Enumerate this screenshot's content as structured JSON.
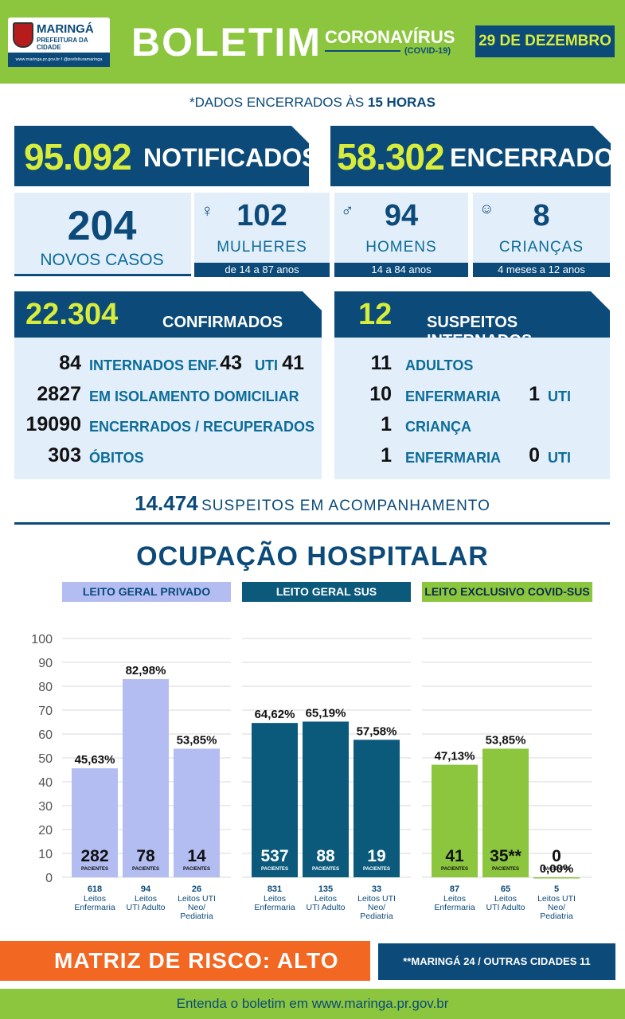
{
  "header": {
    "logo_name": "MARINGÁ",
    "logo_sub": "PREFEITURA DA CIDADE",
    "logo_links": "www.maringa.pr.gov.br  f  @prefeituramaringa",
    "title": "BOLETIM",
    "subtitle": "CORONAVÍRUS",
    "subtitle_tag": "(COVID-19)",
    "date": "29 DE DEZEMBRO"
  },
  "note": {
    "prefix": "*DADOS ENCERRADOS ÀS ",
    "bold": "15 HORAS"
  },
  "notificados": {
    "value": "95.092",
    "label": "NOTIFICADOS"
  },
  "encerrados": {
    "value": "58.302",
    "label": "ENCERRADOS"
  },
  "novos_casos": {
    "value": "204",
    "label": "NOVOS CASOS"
  },
  "demografia": [
    {
      "icon": "woman-icon",
      "value": "102",
      "label": "MULHERES",
      "range": "de 14 a 87 anos"
    },
    {
      "icon": "man-icon",
      "value": "94",
      "label": "HOMENS",
      "range": "14 a 84 anos"
    },
    {
      "icon": "child-icon",
      "value": "8",
      "label": "CRIANÇAS",
      "range": "4 meses a 12 anos"
    }
  ],
  "confirmados": {
    "value": "22.304",
    "label": "CONFIRMADOS",
    "internados": {
      "value": "84",
      "label": "INTERNADOS",
      "enf_label": "ENF.",
      "enf_value": "43",
      "uti_label": "UTI",
      "uti_value": "41"
    },
    "isolamento": {
      "value": "2827",
      "label": "EM ISOLAMENTO DOMICILIAR"
    },
    "recuperados": {
      "value": "19090",
      "label": "ENCERRADOS / RECUPERADOS"
    },
    "obitos": {
      "value": "303",
      "label": "ÓBITOS"
    }
  },
  "suspeitos_internados": {
    "value": "12",
    "label": "SUSPEITOS INTERNADOS",
    "adultos": {
      "value": "11",
      "label": "ADULTOS"
    },
    "adultos_enf": {
      "value": "10",
      "label": "ENFERMARIA",
      "uti_value": "1",
      "uti_label": "UTI"
    },
    "crianca": {
      "value": "1",
      "label": "CRIANÇA"
    },
    "crianca_enf": {
      "value": "1",
      "label": "ENFERMARIA",
      "uti_value": "0",
      "uti_label": "UTI"
    }
  },
  "acompanhamento": {
    "value": "14.474",
    "label": "SUSPEITOS EM ACOMPANHAMENTO"
  },
  "ocupacao_title": "OCUPAÇÃO HOSPITALAR",
  "chart_data": {
    "type": "bar",
    "ylim": [
      0,
      100
    ],
    "yticks": [
      "100",
      "90",
      "80",
      "70",
      "60",
      "50",
      "40",
      "30",
      "20",
      "10",
      "0"
    ],
    "patients_label": "PACIENTES",
    "groups": [
      {
        "name": "LEITO GERAL PRIVADO",
        "color": "#b3bdf2",
        "header_bg": "#b3bdf2",
        "header_fg": "#0b4a79",
        "bars": [
          {
            "pct": 45.63,
            "pct_label": "45,63%",
            "patients": "282",
            "beds": "618",
            "line1": "Leitos",
            "line2": "Enfermaria",
            "line3": ""
          },
          {
            "pct": 82.98,
            "pct_label": "82,98%",
            "patients": "78",
            "beds": "94",
            "line1": "Leitos",
            "line2": "UTI Adulto",
            "line3": ""
          },
          {
            "pct": 53.85,
            "pct_label": "53,85%",
            "patients": "14",
            "beds": "26",
            "line1": "Leitos UTI",
            "line2": "Neo/",
            "line3": "Pediatria"
          }
        ]
      },
      {
        "name": "LEITO GERAL SUS",
        "color": "#0b5a7c",
        "header_bg": "#0b5a7c",
        "header_fg": "#ffffff",
        "bars": [
          {
            "pct": 64.62,
            "pct_label": "64,62%",
            "patients": "537",
            "beds": "831",
            "line1": "Leitos",
            "line2": "Enfermaria",
            "line3": ""
          },
          {
            "pct": 65.19,
            "pct_label": "65,19%",
            "patients": "88",
            "beds": "135",
            "line1": "Leitos",
            "line2": "UTI Adulto",
            "line3": ""
          },
          {
            "pct": 57.58,
            "pct_label": "57,58%",
            "patients": "19",
            "beds": "33",
            "line1": "Leitos UTI",
            "line2": "Neo/",
            "line3": "Pediatria"
          }
        ]
      },
      {
        "name": "LEITO EXCLUSIVO COVID-SUS",
        "color": "#8cc63f",
        "header_bg": "#8cc63f",
        "header_fg": "#0b2a4a",
        "bars": [
          {
            "pct": 47.13,
            "pct_label": "47,13%",
            "patients": "41",
            "beds": "87",
            "line1": "Leitos",
            "line2": "Enfermaria",
            "line3": ""
          },
          {
            "pct": 53.85,
            "pct_label": "53,85%",
            "patients": "35**",
            "beds": "65",
            "line1": "Leitos",
            "line2": "UTI Adulto",
            "line3": ""
          },
          {
            "pct": 0.0,
            "pct_label": "0,00%",
            "patients": "0",
            "beds": "5",
            "line1": "Leitos UTI",
            "line2": "Neo/",
            "line3": "Pediatria"
          }
        ]
      }
    ]
  },
  "risco": "MATRIZ DE RISCO: ALTO",
  "risco_note": "**MARINGÁ 24 / OUTRAS CIDADES 11",
  "footer": "Entenda o boletim em www.maringa.pr.gov.br"
}
